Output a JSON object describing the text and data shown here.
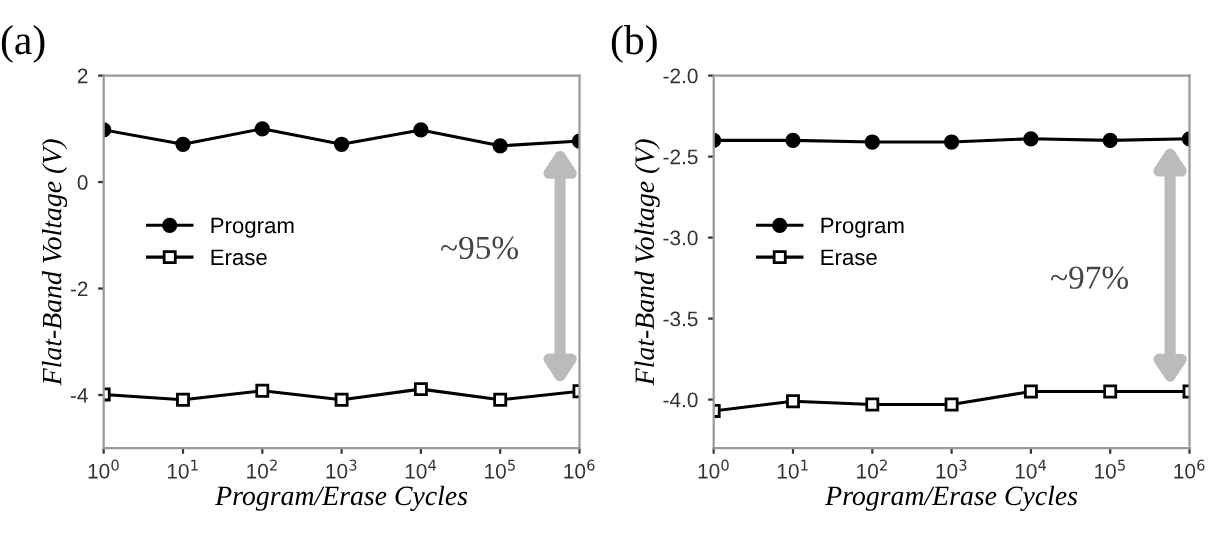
{
  "chart_data": [
    {
      "type": "line",
      "title": "(a)",
      "xlabel": "Program/Erase Cycles",
      "ylabel": "Flat-Band Voltage (V)",
      "log": "x",
      "x": [
        1,
        10,
        100,
        1000,
        10000,
        100000,
        1000000
      ],
      "series": [
        {
          "name": "Program",
          "color": "#000000",
          "marker": "circle",
          "values": [
            0.98,
            0.71,
            1.0,
            0.71,
            0.98,
            0.68,
            0.77
          ]
        },
        {
          "name": "Erase",
          "color": "#000000",
          "marker": "square",
          "values": [
            -3.99,
            -4.09,
            -3.92,
            -4.09,
            -3.89,
            -4.09,
            -3.93
          ]
        }
      ],
      "xlim": [
        1,
        1000000
      ],
      "xticks": [
        {
          "value": 1,
          "label": "10$^{0}$"
        },
        {
          "value": 10,
          "label": "10$^{1}$"
        },
        {
          "value": 100,
          "label": "10$^{2}$"
        },
        {
          "value": 1000,
          "label": "10$^{3}$"
        },
        {
          "value": 10000,
          "label": "10$^{4}$"
        },
        {
          "value": 100000,
          "label": "10$^{5}$"
        },
        {
          "value": 1000000,
          "label": "10$^{6}$"
        }
      ],
      "ylim": [
        -5,
        2
      ],
      "yticks": [
        {
          "value": 2,
          "label": "2"
        },
        {
          "value": 0,
          "label": "0"
        },
        {
          "value": -2,
          "label": "-2"
        },
        {
          "value": -4,
          "label": "-4"
        }
      ],
      "annotations": [
        "~95%"
      ],
      "legend": "center left",
      "grid": false
    },
    {
      "type": "line",
      "title": "(b)",
      "xlabel": "Program/Erase Cycles",
      "ylabel": "Flat-Band Voltage (V)",
      "log": "x",
      "x": [
        1,
        10,
        100,
        1000,
        10000,
        100000,
        1000000
      ],
      "series": [
        {
          "name": "Program",
          "color": "#000000",
          "marker": "circle",
          "values": [
            -2.4,
            -2.4,
            -2.41,
            -2.41,
            -2.39,
            -2.4,
            -2.39
          ]
        },
        {
          "name": "Erase",
          "color": "#000000",
          "marker": "square",
          "values": [
            -4.07,
            -4.01,
            -4.03,
            -4.03,
            -3.95,
            -3.95,
            -3.95
          ]
        }
      ],
      "xlim": [
        1,
        1000000
      ],
      "xticks": [
        {
          "value": 1,
          "label": "10$^{0}$"
        },
        {
          "value": 10,
          "label": "10$^{1}$"
        },
        {
          "value": 100,
          "label": "10$^{2}$"
        },
        {
          "value": 1000,
          "label": "10$^{3}$"
        },
        {
          "value": 10000,
          "label": "10$^{4}$"
        },
        {
          "value": 100000,
          "label": "10$^{5}$"
        },
        {
          "value": 1000000,
          "label": "10$^{6}$"
        }
      ],
      "ylim": [
        -4.3,
        -2.0
      ],
      "yticks": [
        {
          "value": -2.0,
          "label": "-2.0"
        },
        {
          "value": -2.5,
          "label": "-2.5"
        },
        {
          "value": -3.0,
          "label": "-3.0"
        },
        {
          "value": -3.5,
          "label": "-3.5"
        },
        {
          "value": -4.0,
          "label": "-4.0"
        }
      ],
      "annotations": [
        "~97%"
      ],
      "legend": "center left",
      "grid": false
    }
  ]
}
